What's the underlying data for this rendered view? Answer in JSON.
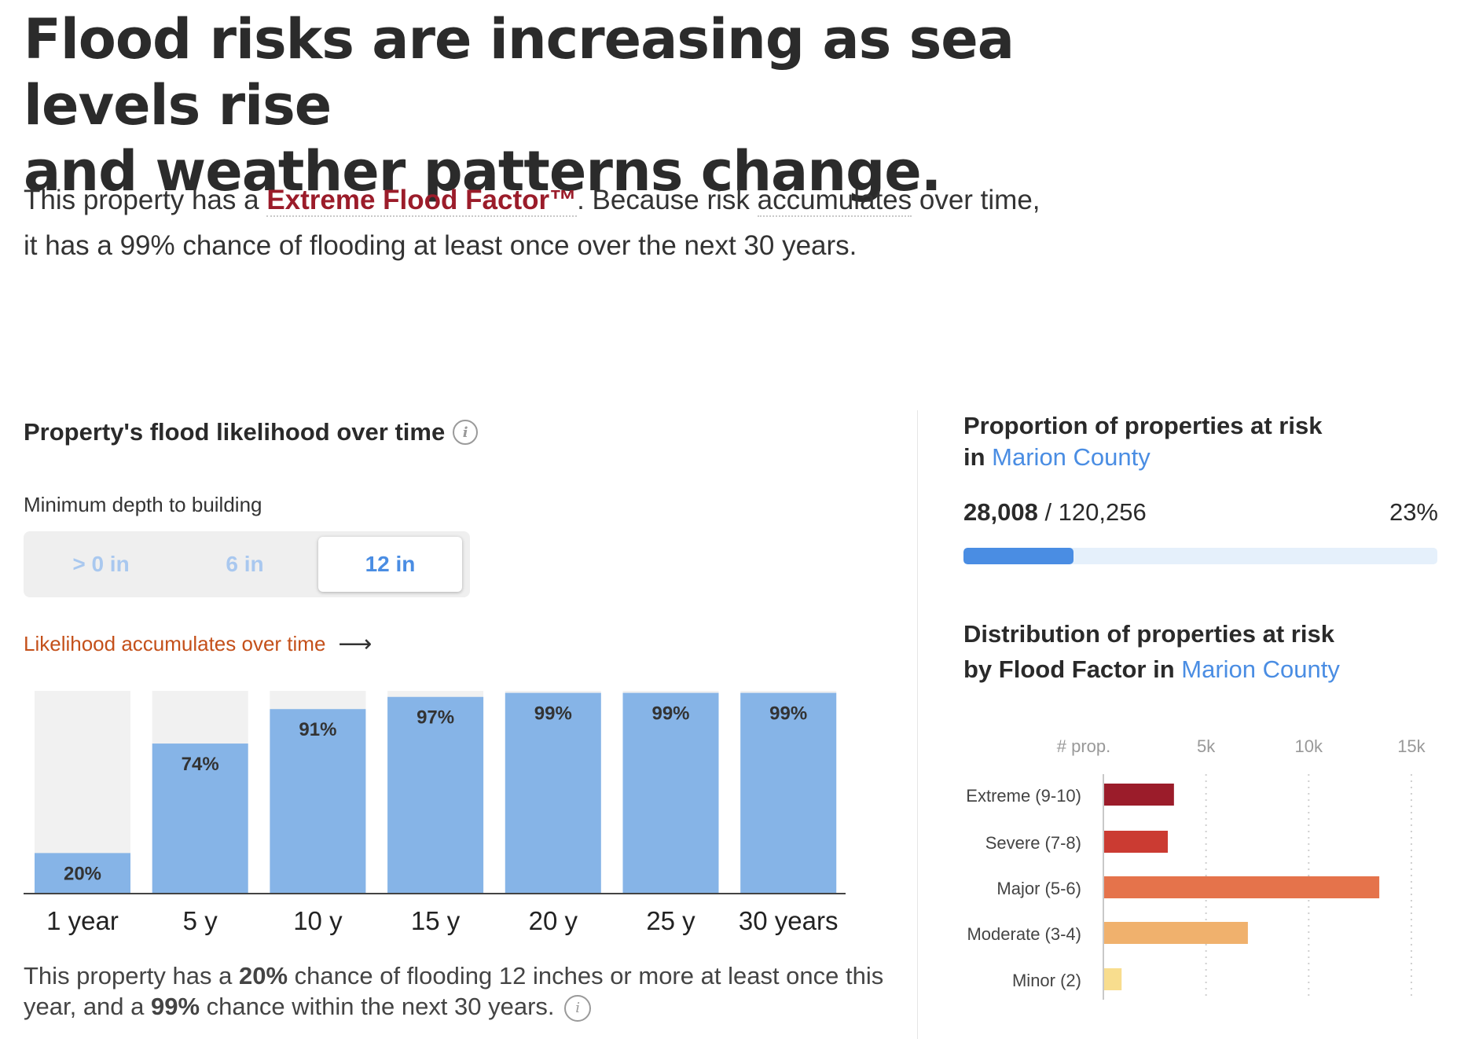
{
  "headline": {
    "line1": "Flood risks are increasing as sea levels rise",
    "line2": "and weather patterns change."
  },
  "intro": {
    "part1": "This property has a ",
    "flood_factor_label": "Extreme Flood Factor™",
    "part2": ". Because risk ",
    "accumulates": "accumulates",
    "part3": " over time,",
    "line2": "it has a 99% chance of flooding at least once over the next 30 years."
  },
  "likelihood": {
    "title": "Property's flood likelihood over time",
    "depth_label": "Minimum depth to building",
    "depth_options": [
      "> 0 in",
      "6 in",
      "12 in"
    ],
    "selected_depth": "12 in",
    "accumulates_link": "Likelihood accumulates over time",
    "summary": {
      "p1": "This property has a ",
      "pct1": "20%",
      "p2": " chance of flooding 12 inches or more at least once this year, and a ",
      "pct2": "99%",
      "p3": " chance within the next 30 years."
    }
  },
  "county": {
    "proportion_title_line1": "Proportion of properties at risk",
    "proportion_title_in": "in ",
    "county_name": "Marion County",
    "at_risk": "28,008",
    "separator": " / ",
    "total": "120,256",
    "percent": "23%",
    "percent_value": 0.233,
    "distribution_title_line1": "Distribution of properties at risk",
    "distribution_title_line2": "by Flood Factor in "
  },
  "colors": {
    "accent": "#4a8de3",
    "bar_fill": "#86b4e7",
    "bar_bg": "#f1f1f1",
    "extreme": "#9b1c2a"
  },
  "chart_data": [
    {
      "type": "bar",
      "title": "Property's flood likelihood over time",
      "categories": [
        "1 year",
        "5 y",
        "10 y",
        "15 y",
        "20 y",
        "25 y",
        "30 years"
      ],
      "values": [
        20,
        74,
        91,
        97,
        99,
        99,
        99
      ],
      "labels": [
        "20%",
        "74%",
        "91%",
        "97%",
        "99%",
        "99%",
        "99%"
      ],
      "ylim": [
        0,
        100
      ],
      "ylabel": "",
      "xlabel": "",
      "grid": false
    },
    {
      "type": "bar",
      "orientation": "horizontal",
      "title": "Distribution of properties at risk by Flood Factor in Marion County",
      "axis_label": "# prop.",
      "ticks": [
        5000,
        10000,
        15000
      ],
      "tick_labels": [
        "5k",
        "10k",
        "15k"
      ],
      "xlim": [
        0,
        15500
      ],
      "categories": [
        "Extreme (9-10)",
        "Severe (7-8)",
        "Major (5-6)",
        "Moderate (3-4)",
        "Minor (2)"
      ],
      "values": [
        3400,
        3100,
        13400,
        7000,
        850
      ],
      "colors": [
        "#9b1c2a",
        "#cb3b32",
        "#e5734b",
        "#f0b16d",
        "#f8dd8e"
      ],
      "grid": true
    }
  ]
}
